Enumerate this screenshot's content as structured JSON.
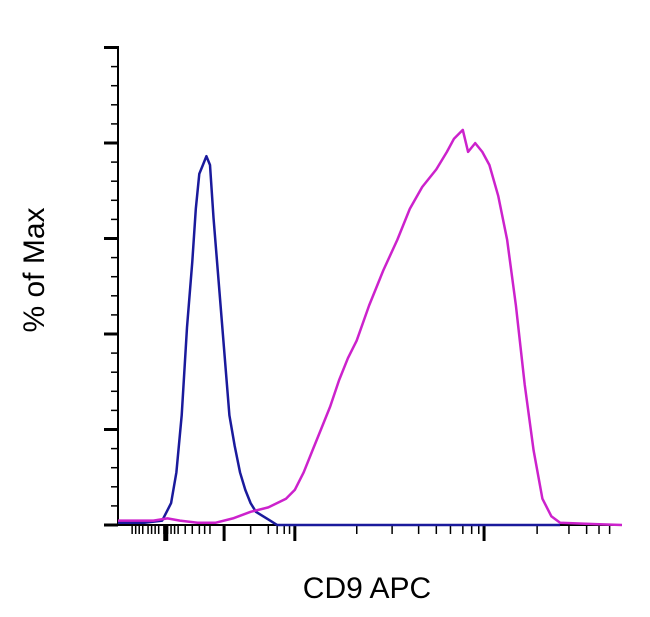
{
  "chart_data": {
    "type": "line",
    "title": "",
    "xlabel": "CD9 APC",
    "ylabel": "% of Max",
    "x_scale": "biexponential",
    "ylim": [
      0,
      100
    ],
    "grid": false,
    "legend": "none",
    "series": [
      {
        "color": "#1a1a9c",
        "points": [
          [
            0.0,
            0.5
          ],
          [
            0.15,
            0.5
          ],
          [
            0.25,
            1
          ],
          [
            0.3,
            5
          ],
          [
            0.33,
            12
          ],
          [
            0.36,
            25
          ],
          [
            0.39,
            45
          ],
          [
            0.42,
            60
          ],
          [
            0.44,
            72
          ],
          [
            0.46,
            80
          ],
          [
            0.48,
            82
          ],
          [
            0.5,
            84
          ],
          [
            0.52,
            82
          ],
          [
            0.54,
            70
          ],
          [
            0.57,
            55
          ],
          [
            0.6,
            40
          ],
          [
            0.63,
            25
          ],
          [
            0.66,
            18
          ],
          [
            0.69,
            12
          ],
          [
            0.72,
            8
          ],
          [
            0.75,
            5
          ],
          [
            0.78,
            3
          ],
          [
            0.82,
            2
          ],
          [
            0.86,
            1
          ],
          [
            0.9,
            0
          ],
          [
            2.5,
            0
          ]
        ]
      },
      {
        "color": "#cc22cc",
        "points": [
          [
            0.0,
            1
          ],
          [
            0.2,
            1
          ],
          [
            0.28,
            1.5
          ],
          [
            0.35,
            1
          ],
          [
            0.45,
            0.5
          ],
          [
            0.55,
            0.5
          ],
          [
            0.65,
            1.5
          ],
          [
            0.75,
            3
          ],
          [
            0.85,
            4
          ],
          [
            0.95,
            6
          ],
          [
            1.0,
            8
          ],
          [
            1.05,
            12
          ],
          [
            1.1,
            17
          ],
          [
            1.15,
            22
          ],
          [
            1.2,
            27
          ],
          [
            1.25,
            33
          ],
          [
            1.3,
            38
          ],
          [
            1.35,
            42
          ],
          [
            1.42,
            50
          ],
          [
            1.5,
            58
          ],
          [
            1.58,
            65
          ],
          [
            1.65,
            72
          ],
          [
            1.72,
            77
          ],
          [
            1.8,
            81
          ],
          [
            1.86,
            85
          ],
          [
            1.9,
            88
          ],
          [
            1.95,
            90
          ],
          [
            1.98,
            85
          ],
          [
            2.02,
            87
          ],
          [
            2.06,
            85
          ],
          [
            2.1,
            82
          ],
          [
            2.15,
            75
          ],
          [
            2.2,
            65
          ],
          [
            2.25,
            50
          ],
          [
            2.3,
            32
          ],
          [
            2.35,
            17
          ],
          [
            2.4,
            6
          ],
          [
            2.45,
            2
          ],
          [
            2.5,
            0.5
          ],
          [
            2.7,
            0.2
          ],
          [
            2.85,
            0
          ]
        ]
      }
    ]
  }
}
